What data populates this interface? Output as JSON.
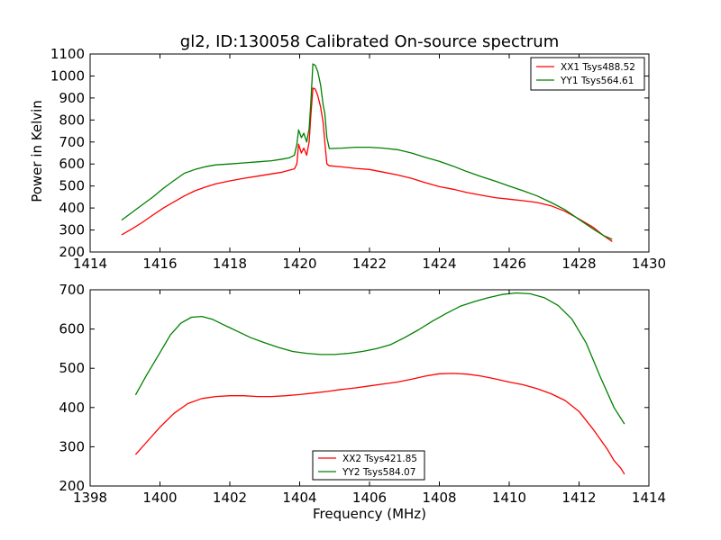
{
  "chart_data": [
    {
      "type": "line",
      "title": "gl2, ID:130058 Calibrated On-source spectrum",
      "xlabel": "",
      "ylabel": "Power in Kelvin",
      "xlim": [
        1414,
        1430
      ],
      "ylim": [
        200,
        1100
      ],
      "xticks": [
        1414,
        1416,
        1418,
        1420,
        1422,
        1424,
        1426,
        1428,
        1430
      ],
      "yticks": [
        200,
        300,
        400,
        500,
        600,
        700,
        800,
        900,
        1000,
        1100
      ],
      "legend_position": "upper right",
      "series": [
        {
          "name": "XX1 Tsys488.52",
          "color": "#ff0000",
          "points": [
            [
              1414.9,
              278
            ],
            [
              1415.2,
              305
            ],
            [
              1415.5,
              335
            ],
            [
              1415.8,
              368
            ],
            [
              1416.1,
              400
            ],
            [
              1416.4,
              428
            ],
            [
              1416.7,
              455
            ],
            [
              1417.0,
              478
            ],
            [
              1417.3,
              495
            ],
            [
              1417.6,
              510
            ],
            [
              1418.0,
              523
            ],
            [
              1418.4,
              535
            ],
            [
              1418.8,
              545
            ],
            [
              1419.2,
              555
            ],
            [
              1419.5,
              563
            ],
            [
              1419.7,
              572
            ],
            [
              1419.85,
              578
            ],
            [
              1419.92,
              600
            ],
            [
              1419.97,
              690
            ],
            [
              1420.05,
              650
            ],
            [
              1420.12,
              672
            ],
            [
              1420.2,
              640
            ],
            [
              1420.27,
              700
            ],
            [
              1420.32,
              820
            ],
            [
              1420.38,
              945
            ],
            [
              1420.45,
              940
            ],
            [
              1420.52,
              910
            ],
            [
              1420.6,
              860
            ],
            [
              1420.67,
              790
            ],
            [
              1420.72,
              700
            ],
            [
              1420.78,
              600
            ],
            [
              1420.85,
              592
            ],
            [
              1421.2,
              587
            ],
            [
              1421.6,
              580
            ],
            [
              1422.0,
              575
            ],
            [
              1422.4,
              563
            ],
            [
              1422.8,
              550
            ],
            [
              1423.2,
              535
            ],
            [
              1423.6,
              515
            ],
            [
              1424.0,
              497
            ],
            [
              1424.4,
              485
            ],
            [
              1424.8,
              470
            ],
            [
              1425.2,
              458
            ],
            [
              1425.6,
              447
            ],
            [
              1426.0,
              440
            ],
            [
              1426.4,
              433
            ],
            [
              1426.8,
              425
            ],
            [
              1427.2,
              410
            ],
            [
              1427.6,
              385
            ],
            [
              1428.0,
              350
            ],
            [
              1428.4,
              313
            ],
            [
              1428.7,
              275
            ],
            [
              1428.95,
              248
            ]
          ]
        },
        {
          "name": "YY1 Tsys564.61",
          "color": "#008000",
          "points": [
            [
              1414.9,
              345
            ],
            [
              1415.2,
              380
            ],
            [
              1415.5,
              415
            ],
            [
              1415.8,
              450
            ],
            [
              1416.1,
              490
            ],
            [
              1416.4,
              525
            ],
            [
              1416.7,
              558
            ],
            [
              1417.0,
              575
            ],
            [
              1417.3,
              588
            ],
            [
              1417.6,
              596
            ],
            [
              1418.0,
              600
            ],
            [
              1418.4,
              605
            ],
            [
              1418.8,
              610
            ],
            [
              1419.2,
              615
            ],
            [
              1419.5,
              622
            ],
            [
              1419.7,
              628
            ],
            [
              1419.85,
              640
            ],
            [
              1419.92,
              690
            ],
            [
              1419.97,
              755
            ],
            [
              1420.05,
              720
            ],
            [
              1420.12,
              740
            ],
            [
              1420.2,
              700
            ],
            [
              1420.27,
              760
            ],
            [
              1420.32,
              880
            ],
            [
              1420.38,
              1055
            ],
            [
              1420.45,
              1048
            ],
            [
              1420.52,
              1020
            ],
            [
              1420.6,
              960
            ],
            [
              1420.67,
              870
            ],
            [
              1420.72,
              830
            ],
            [
              1420.78,
              720
            ],
            [
              1420.85,
              670
            ],
            [
              1421.2,
              672
            ],
            [
              1421.6,
              676
            ],
            [
              1422.0,
              676
            ],
            [
              1422.4,
              672
            ],
            [
              1422.8,
              665
            ],
            [
              1423.2,
              650
            ],
            [
              1423.6,
              630
            ],
            [
              1424.0,
              612
            ],
            [
              1424.4,
              590
            ],
            [
              1424.8,
              565
            ],
            [
              1425.2,
              543
            ],
            [
              1425.6,
              522
            ],
            [
              1426.0,
              500
            ],
            [
              1426.4,
              478
            ],
            [
              1426.8,
              455
            ],
            [
              1427.2,
              425
            ],
            [
              1427.6,
              392
            ],
            [
              1428.0,
              348
            ],
            [
              1428.4,
              305
            ],
            [
              1428.7,
              275
            ],
            [
              1428.95,
              258
            ]
          ]
        }
      ]
    },
    {
      "type": "line",
      "title": "",
      "xlabel": "Frequency (MHz)",
      "ylabel": "",
      "xlim": [
        1398,
        1414
      ],
      "ylim": [
        200,
        700
      ],
      "xticks": [
        1398,
        1400,
        1402,
        1404,
        1406,
        1408,
        1410,
        1412,
        1414
      ],
      "yticks": [
        200,
        300,
        400,
        500,
        600,
        700
      ],
      "legend_position": "lower center",
      "series": [
        {
          "name": "XX2 Tsys421.85",
          "color": "#ff0000",
          "points": [
            [
              1399.3,
              280
            ],
            [
              1399.6,
              310
            ],
            [
              1400.0,
              350
            ],
            [
              1400.4,
              385
            ],
            [
              1400.8,
              410
            ],
            [
              1401.2,
              423
            ],
            [
              1401.6,
              428
            ],
            [
              1402.0,
              430
            ],
            [
              1402.4,
              430
            ],
            [
              1402.8,
              428
            ],
            [
              1403.2,
              428
            ],
            [
              1403.6,
              430
            ],
            [
              1404.0,
              433
            ],
            [
              1404.4,
              437
            ],
            [
              1404.8,
              441
            ],
            [
              1405.2,
              446
            ],
            [
              1405.6,
              450
            ],
            [
              1406.0,
              455
            ],
            [
              1406.4,
              460
            ],
            [
              1406.8,
              465
            ],
            [
              1407.2,
              472
            ],
            [
              1407.6,
              480
            ],
            [
              1408.0,
              486
            ],
            [
              1408.4,
              487
            ],
            [
              1408.8,
              485
            ],
            [
              1409.2,
              480
            ],
            [
              1409.6,
              473
            ],
            [
              1410.0,
              465
            ],
            [
              1410.4,
              458
            ],
            [
              1410.8,
              448
            ],
            [
              1411.2,
              435
            ],
            [
              1411.6,
              418
            ],
            [
              1412.0,
              390
            ],
            [
              1412.4,
              345
            ],
            [
              1412.8,
              295
            ],
            [
              1413.0,
              265
            ],
            [
              1413.2,
              245
            ],
            [
              1413.3,
              230
            ]
          ]
        },
        {
          "name": "YY2 Tsys584.07",
          "color": "#008000",
          "points": [
            [
              1399.3,
              432
            ],
            [
              1399.6,
              480
            ],
            [
              1400.0,
              540
            ],
            [
              1400.3,
              585
            ],
            [
              1400.6,
              615
            ],
            [
              1400.9,
              630
            ],
            [
              1401.2,
              632
            ],
            [
              1401.5,
              625
            ],
            [
              1401.8,
              612
            ],
            [
              1402.2,
              595
            ],
            [
              1402.6,
              578
            ],
            [
              1403.0,
              565
            ],
            [
              1403.4,
              553
            ],
            [
              1403.8,
              543
            ],
            [
              1404.2,
              538
            ],
            [
              1404.6,
              535
            ],
            [
              1405.0,
              535
            ],
            [
              1405.4,
              538
            ],
            [
              1405.8,
              543
            ],
            [
              1406.2,
              550
            ],
            [
              1406.6,
              560
            ],
            [
              1407.0,
              578
            ],
            [
              1407.4,
              598
            ],
            [
              1407.8,
              620
            ],
            [
              1408.2,
              640
            ],
            [
              1408.6,
              658
            ],
            [
              1409.0,
              670
            ],
            [
              1409.4,
              680
            ],
            [
              1409.8,
              688
            ],
            [
              1410.2,
              692
            ],
            [
              1410.6,
              690
            ],
            [
              1411.0,
              680
            ],
            [
              1411.4,
              660
            ],
            [
              1411.8,
              625
            ],
            [
              1412.2,
              565
            ],
            [
              1412.6,
              480
            ],
            [
              1413.0,
              400
            ],
            [
              1413.3,
              358
            ]
          ]
        }
      ]
    }
  ]
}
